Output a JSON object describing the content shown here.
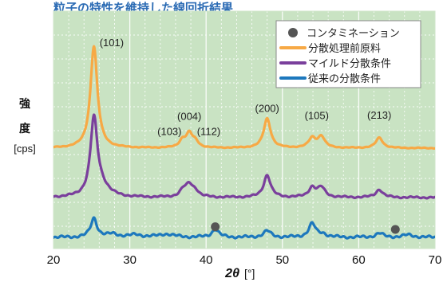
{
  "chart_data": {
    "type": "line",
    "title": "粒子の特性を維持した線回折結果",
    "xlabel": "2θ",
    "xunit": "[°]",
    "ylabel_chars": [
      "強",
      "度"
    ],
    "yunit": "[cps]",
    "xlim": [
      20,
      70
    ],
    "xticks": [
      20,
      30,
      40,
      50,
      60,
      70
    ],
    "grid": true,
    "legend_position": "top-right",
    "legend": {
      "marker_label": "コンタミネーション",
      "series_labels": [
        "分散処理前原料",
        "マイルド分散条件",
        "従来の分散条件"
      ]
    },
    "colors": {
      "background": "#c9e3c3",
      "grid": "#ffffff",
      "marker": "#555555"
    },
    "series": [
      {
        "name": "分散処理前原料",
        "color": "#f7a945",
        "baseline": 186,
        "noise": 0.6,
        "peaks": [
          {
            "x": 25.3,
            "h": 128,
            "w": 0.55
          },
          {
            "x": 36.9,
            "h": 9,
            "w": 0.5
          },
          {
            "x": 37.8,
            "h": 17,
            "w": 0.5
          },
          {
            "x": 38.6,
            "h": 7,
            "w": 0.5
          },
          {
            "x": 48.0,
            "h": 37,
            "w": 0.55
          },
          {
            "x": 53.9,
            "h": 12,
            "w": 0.55
          },
          {
            "x": 55.1,
            "h": 14,
            "w": 0.55
          },
          {
            "x": 62.7,
            "h": 13,
            "w": 0.55
          }
        ]
      },
      {
        "name": "マイルド分散条件",
        "color": "#7a3f9c",
        "baseline": 248,
        "noise": 1.2,
        "peaks": [
          {
            "x": 25.3,
            "h": 96,
            "w": 0.55
          },
          {
            "x": 26.3,
            "h": 12,
            "w": 1.2
          },
          {
            "x": 37.0,
            "h": 8,
            "w": 0.55
          },
          {
            "x": 37.8,
            "h": 14,
            "w": 0.55
          },
          {
            "x": 38.6,
            "h": 7,
            "w": 0.55
          },
          {
            "x": 48.0,
            "h": 28,
            "w": 0.55
          },
          {
            "x": 53.9,
            "h": 12,
            "w": 0.55
          },
          {
            "x": 55.1,
            "h": 12,
            "w": 0.6
          },
          {
            "x": 62.7,
            "h": 10,
            "w": 0.55
          }
        ]
      },
      {
        "name": "従来の分散条件",
        "color": "#1d78bd",
        "baseline": 298,
        "noise": 1.8,
        "peaks": [
          {
            "x": 25.3,
            "h": 24,
            "w": 0.5
          },
          {
            "x": 27.8,
            "h": 4,
            "w": 0.9
          },
          {
            "x": 30.8,
            "h": 3,
            "w": 1.0
          },
          {
            "x": 34.8,
            "h": 4,
            "w": 1.2
          },
          {
            "x": 41.2,
            "h": 10,
            "w": 0.55
          },
          {
            "x": 48.0,
            "h": 8,
            "w": 0.6
          },
          {
            "x": 53.9,
            "h": 17,
            "w": 0.55
          },
          {
            "x": 55.3,
            "h": 4,
            "w": 0.6
          },
          {
            "x": 62.7,
            "h": 5,
            "w": 0.6
          },
          {
            "x": 66.5,
            "h": 3,
            "w": 0.9
          }
        ]
      }
    ],
    "contamination_markers": [
      {
        "x": 41.2
      },
      {
        "x": 64.8
      }
    ],
    "annotations": [
      {
        "text": "(101)",
        "x": 25.3
      },
      {
        "text": "(004)",
        "x": 37.8
      },
      {
        "text": "(103)",
        "x": 37.0
      },
      {
        "text": "(112)",
        "x": 38.6
      },
      {
        "text": "(200)",
        "x": 48.0
      },
      {
        "text": "(105)",
        "x": 54.5
      },
      {
        "text": "(213)",
        "x": 62.7
      }
    ]
  }
}
